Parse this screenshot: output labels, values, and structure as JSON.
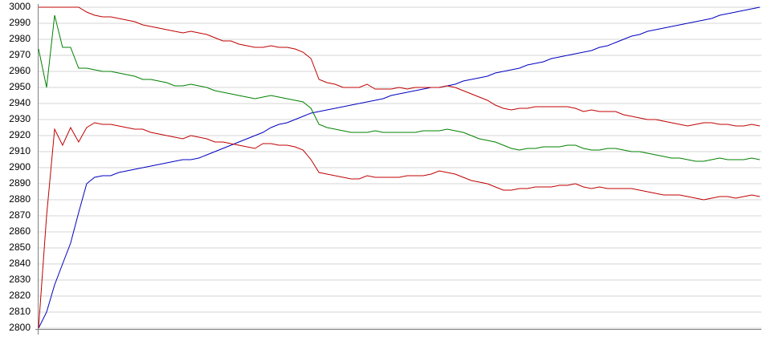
{
  "chart_data": {
    "type": "line",
    "ylim": [
      2800,
      3000
    ],
    "yticks": [
      2800,
      2810,
      2820,
      2830,
      2840,
      2850,
      2860,
      2870,
      2880,
      2890,
      2900,
      2910,
      2920,
      2930,
      2940,
      2950,
      2960,
      2970,
      2980,
      2990,
      3000
    ],
    "grid": true,
    "series": [
      {
        "color": "#0000c0",
        "values": [
          2800,
          2810,
          2827,
          2840,
          2853,
          2872,
          2890,
          2894,
          2895,
          2895,
          2897,
          2898,
          2899,
          2900,
          2901,
          2902,
          2903,
          2904,
          2905,
          2905,
          2906,
          2908,
          2910,
          2912,
          2914,
          2916,
          2918,
          2920,
          2922,
          2925,
          2927,
          2928,
          2930,
          2932,
          2934,
          2935,
          2936,
          2937,
          2938,
          2939,
          2940,
          2941,
          2942,
          2943,
          2945,
          2946,
          2947,
          2948,
          2949,
          2950,
          2950,
          2951,
          2952,
          2954,
          2955,
          2956,
          2957,
          2959,
          2960,
          2961,
          2962,
          2964,
          2965,
          2966,
          2968,
          2969,
          2970,
          2971,
          2972,
          2973,
          2975,
          2976,
          2978,
          2980,
          2982,
          2983,
          2985,
          2986,
          2987,
          2988,
          2989,
          2990,
          2991,
          2992,
          2993,
          2995,
          2996,
          2997,
          2998,
          2999,
          3000
        ]
      },
      {
        "color": "#008000",
        "values": [
          2974,
          2950,
          2995,
          2975,
          2975,
          2962,
          2962,
          2961,
          2960,
          2960,
          2959,
          2958,
          2957,
          2955,
          2955,
          2954,
          2953,
          2951,
          2951,
          2952,
          2951,
          2950,
          2948,
          2947,
          2946,
          2945,
          2944,
          2943,
          2944,
          2945,
          2944,
          2943,
          2942,
          2941,
          2937,
          2927,
          2925,
          2924,
          2923,
          2922,
          2922,
          2922,
          2923,
          2922,
          2922,
          2922,
          2922,
          2922,
          2923,
          2923,
          2923,
          2924,
          2923,
          2922,
          2920,
          2918,
          2917,
          2916,
          2914,
          2912,
          2911,
          2912,
          2912,
          2913,
          2913,
          2913,
          2914,
          2914,
          2912,
          2911,
          2911,
          2912,
          2912,
          2911,
          2910,
          2910,
          2909,
          2908,
          2907,
          2906,
          2906,
          2905,
          2904,
          2904,
          2905,
          2906,
          2905,
          2905,
          2905,
          2906,
          2905
        ]
      },
      {
        "color": "#c00000",
        "values": [
          3000,
          3000,
          3000,
          3000,
          3000,
          3000,
          2997,
          2995,
          2994,
          2994,
          2993,
          2992,
          2991,
          2989,
          2988,
          2987,
          2986,
          2985,
          2984,
          2985,
          2984,
          2983,
          2981,
          2979,
          2979,
          2977,
          2976,
          2975,
          2975,
          2976,
          2975,
          2975,
          2974,
          2972,
          2968,
          2955,
          2953,
          2952,
          2950,
          2950,
          2950,
          2952,
          2949,
          2949,
          2949,
          2950,
          2949,
          2950,
          2950,
          2950,
          2950,
          2951,
          2950,
          2948,
          2946,
          2944,
          2942,
          2939,
          2937,
          2936,
          2937,
          2937,
          2938,
          2938,
          2938,
          2938,
          2938,
          2937,
          2935,
          2936,
          2935,
          2935,
          2935,
          2933,
          2932,
          2931,
          2930,
          2930,
          2929,
          2928,
          2927,
          2926,
          2927,
          2928,
          2928,
          2927,
          2927,
          2926,
          2926,
          2927,
          2926
        ]
      },
      {
        "color": "#c00000",
        "values": [
          2800,
          2870,
          2924,
          2914,
          2925,
          2916,
          2925,
          2928,
          2927,
          2927,
          2926,
          2925,
          2924,
          2924,
          2922,
          2921,
          2920,
          2919,
          2918,
          2920,
          2919,
          2918,
          2916,
          2916,
          2915,
          2914,
          2913,
          2912,
          2915,
          2915,
          2914,
          2914,
          2913,
          2911,
          2905,
          2897,
          2896,
          2895,
          2894,
          2893,
          2893,
          2895,
          2894,
          2894,
          2894,
          2894,
          2895,
          2895,
          2895,
          2896,
          2898,
          2897,
          2896,
          2894,
          2892,
          2891,
          2890,
          2888,
          2886,
          2886,
          2887,
          2887,
          2888,
          2888,
          2888,
          2889,
          2889,
          2890,
          2888,
          2887,
          2888,
          2887,
          2887,
          2887,
          2887,
          2886,
          2885,
          2884,
          2883,
          2883,
          2883,
          2882,
          2881,
          2880,
          2881,
          2882,
          2882,
          2881,
          2882,
          2883,
          2882
        ]
      }
    ]
  }
}
